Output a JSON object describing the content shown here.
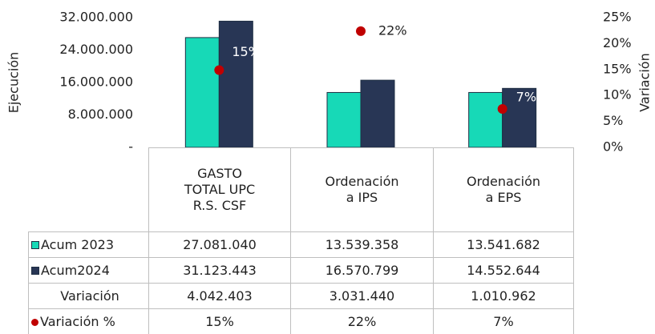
{
  "chart_data": {
    "type": "bar",
    "y_axis_label": "Ejecución",
    "y2_axis_label": "Variación",
    "categories": [
      "GASTO TOTAL UPC R.S. CSF",
      "Ordenación a IPS",
      "Ordenación a EPS"
    ],
    "series": [
      {
        "name": "Acum 2023",
        "type": "bar",
        "color": "#17d9b7",
        "values": [
          27081040,
          13539358,
          13541682
        ],
        "value_labels": [
          "27.081.040",
          "13.539.358",
          "13.541.682"
        ]
      },
      {
        "name": "Acum2024",
        "type": "bar",
        "color": "#283655",
        "values": [
          31123443,
          16570799,
          14552644
        ],
        "value_labels": [
          "31.123.443",
          "16.570.799",
          "14.552.644"
        ]
      },
      {
        "name": "Variación %",
        "type": "scatter",
        "axis": "y2",
        "color": "#c00000",
        "values": [
          14.9,
          22.4,
          7.4
        ],
        "value_labels": [
          "15%",
          "22%",
          "7%"
        ]
      }
    ],
    "table_rows": [
      {
        "name": "Variación",
        "cells": [
          "4.042.403",
          "3.031.440",
          "1.010.962"
        ]
      }
    ],
    "ylim": [
      0,
      32000000
    ],
    "yticks": [
      {
        "value": 0,
        "label": "-"
      },
      {
        "value": 8000000,
        "label": "8.000.000"
      },
      {
        "value": 16000000,
        "label": "16.000.000"
      },
      {
        "value": 24000000,
        "label": "24.000.000"
      },
      {
        "value": 32000000,
        "label": "32.000.000"
      }
    ],
    "y2lim": [
      0,
      25
    ],
    "y2ticks": [
      {
        "value": 0,
        "label": "0%"
      },
      {
        "value": 5,
        "label": "5%"
      },
      {
        "value": 10,
        "label": "10%"
      },
      {
        "value": 15,
        "label": "15%"
      },
      {
        "value": 20,
        "label": "20%"
      },
      {
        "value": 25,
        "label": "25%"
      }
    ]
  }
}
